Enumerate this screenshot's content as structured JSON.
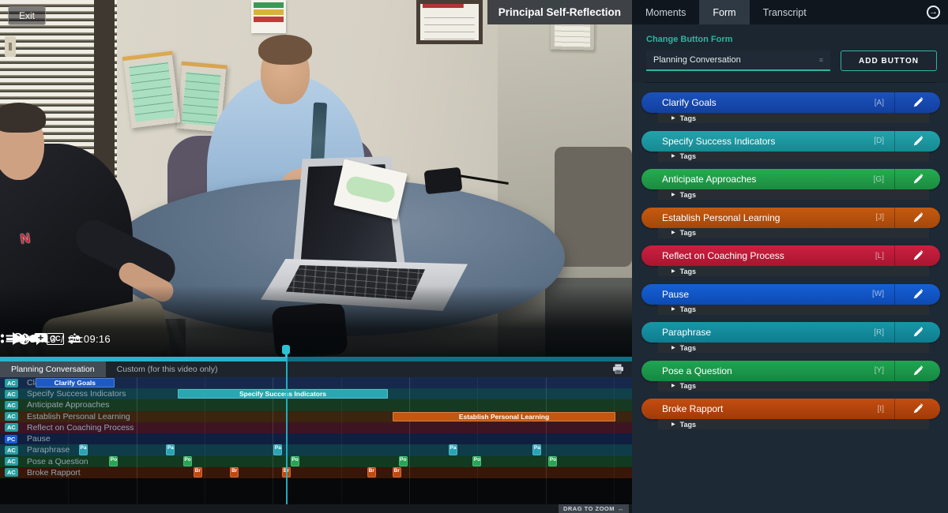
{
  "accent": {
    "teal": "#2fb5a0",
    "playhead": "#23b3c6"
  },
  "player": {
    "exit_label": "Exit",
    "title": "Principal Self-Reflection",
    "scene": {
      "shirt_logo": "N"
    },
    "controls": {
      "speed_label": "1x",
      "current_time": "00:04:13",
      "separator": "/",
      "duration": "00:09:16",
      "cc_label": "CC",
      "zoom_level": "1.0 x"
    }
  },
  "panel": {
    "tabs": [
      {
        "label": "Moments",
        "active": false
      },
      {
        "label": "Form",
        "active": true
      },
      {
        "label": "Transcript",
        "active": false
      }
    ],
    "form": {
      "heading": "Change Button Form",
      "dropdown_value": "Planning Conversation",
      "add_button_label": "ADD BUTTON"
    },
    "buttons": [
      {
        "label": "Clarify Goals",
        "hotkey": "[A]",
        "color": "#1b52bc",
        "color_dark": "#123f9e",
        "tags_label": "Tags"
      },
      {
        "label": "Specify Success Indicators",
        "hotkey": "[D]",
        "color": "#22a3ab",
        "color_dark": "#168a92",
        "tags_label": "Tags"
      },
      {
        "label": "Anticipate Approaches",
        "hotkey": "[G]",
        "color": "#27ab51",
        "color_dark": "#1a8c3f",
        "tags_label": "Tags"
      },
      {
        "label": "Establish Personal Learning",
        "hotkey": "[J]",
        "color": "#c65a10",
        "color_dark": "#a4470a",
        "tags_label": "Tags"
      },
      {
        "label": "Reflect on Coaching Process",
        "hotkey": "[L]",
        "color": "#cc2040",
        "color_dark": "#a81530",
        "tags_label": "Tags"
      },
      {
        "label": "Pause",
        "hotkey": "[W]",
        "color": "#1660d6",
        "color_dark": "#0d4ab2",
        "tags_label": "Tags"
      },
      {
        "label": "Paraphrase",
        "hotkey": "[R]",
        "color": "#1897a8",
        "color_dark": "#0f7d8e",
        "tags_label": "Tags"
      },
      {
        "label": "Pose a Question",
        "hotkey": "[Y]",
        "color": "#20a553",
        "color_dark": "#168741",
        "tags_label": "Tags"
      },
      {
        "label": "Broke Rapport",
        "hotkey": "[I]",
        "color": "#c44d10",
        "color_dark": "#a13b09",
        "tags_label": "Tags"
      }
    ]
  },
  "timeline": {
    "tabs": [
      {
        "label": "Planning Conversation",
        "active": true
      },
      {
        "label": "Custom (for this video only)",
        "active": false
      }
    ],
    "playhead_pct": 45.4,
    "drag_label": "DRAG TO ZOOM",
    "drag_glyph": "↔",
    "rows": [
      {
        "badge": "AC",
        "badge_color": "#2a9da1",
        "label": "Clarify Goals",
        "row_bg": "#16294d",
        "bars": [
          {
            "start_pct": 5.6,
            "width_pct": 12.5,
            "label": "Clarify Goals",
            "color": "#1d5ac4"
          }
        ],
        "markers": []
      },
      {
        "badge": "AC",
        "badge_color": "#2a9da1",
        "label": "Specify Success Indicators",
        "row_bg": "#10404a",
        "bars": [
          {
            "start_pct": 28.1,
            "width_pct": 33.3,
            "label": "Specify Success Indicators",
            "color": "#2aa7b0"
          }
        ],
        "markers": []
      },
      {
        "badge": "AC",
        "badge_color": "#2a9da1",
        "label": "Anticipate Approaches",
        "row_bg": "#153a21",
        "bars": [],
        "markers": []
      },
      {
        "badge": "AC",
        "badge_color": "#2a9da1",
        "label": "Establish Personal Learning",
        "row_bg": "#3b2410",
        "bars": [
          {
            "start_pct": 62.1,
            "width_pct": 35.3,
            "label": "Establish Personal Learning",
            "color": "#c4560f"
          }
        ],
        "markers": []
      },
      {
        "badge": "AC",
        "badge_color": "#2a9da1",
        "label": "Reflect on Coaching Process",
        "row_bg": "#3d1422",
        "bars": [],
        "markers": []
      },
      {
        "badge": "PC",
        "badge_color": "#1c5ad4",
        "label": "Pause",
        "row_bg": "#101f40",
        "bars": [],
        "markers": []
      },
      {
        "badge": "AC",
        "badge_color": "#2a9da1",
        "label": "Paraphrase",
        "row_bg": "#0e3c48",
        "bars": [],
        "markers": [
          {
            "pct": 12.5,
            "label": "Pa",
            "color": "#2aa3b4"
          },
          {
            "pct": 26.3,
            "label": "Pa",
            "color": "#2aa3b4"
          },
          {
            "pct": 43.3,
            "label": "Pa",
            "color": "#2aa3b4"
          },
          {
            "pct": 71.0,
            "label": "Pa",
            "color": "#2aa3b4"
          },
          {
            "pct": 84.3,
            "label": "Pa",
            "color": "#2aa3b4"
          }
        ]
      },
      {
        "badge": "AC",
        "badge_color": "#2a9da1",
        "label": "Pose a Question",
        "row_bg": "#123a20",
        "bars": [],
        "markers": [
          {
            "pct": 17.3,
            "label": "Po",
            "color": "#27a555"
          },
          {
            "pct": 29.0,
            "label": "Po",
            "color": "#27a555"
          },
          {
            "pct": 46.0,
            "label": "Po",
            "color": "#27a555"
          },
          {
            "pct": 63.1,
            "label": "Po",
            "color": "#27a555"
          },
          {
            "pct": 74.8,
            "label": "Po",
            "color": "#27a555"
          },
          {
            "pct": 86.8,
            "label": "Po",
            "color": "#27a555"
          }
        ]
      },
      {
        "badge": "AC",
        "badge_color": "#2a9da1",
        "label": "Broke Rapport",
        "row_bg": "#381708",
        "bars": [],
        "markers": [
          {
            "pct": 30.6,
            "label": "Br",
            "color": "#c0490f"
          },
          {
            "pct": 36.4,
            "label": "Br",
            "color": "#c0490f"
          },
          {
            "pct": 44.6,
            "label": "Br",
            "color": "#c0490f"
          },
          {
            "pct": 58.1,
            "label": "Br",
            "color": "#c0490f"
          },
          {
            "pct": 62.1,
            "label": "Br",
            "color": "#c0490f"
          }
        ]
      }
    ]
  }
}
